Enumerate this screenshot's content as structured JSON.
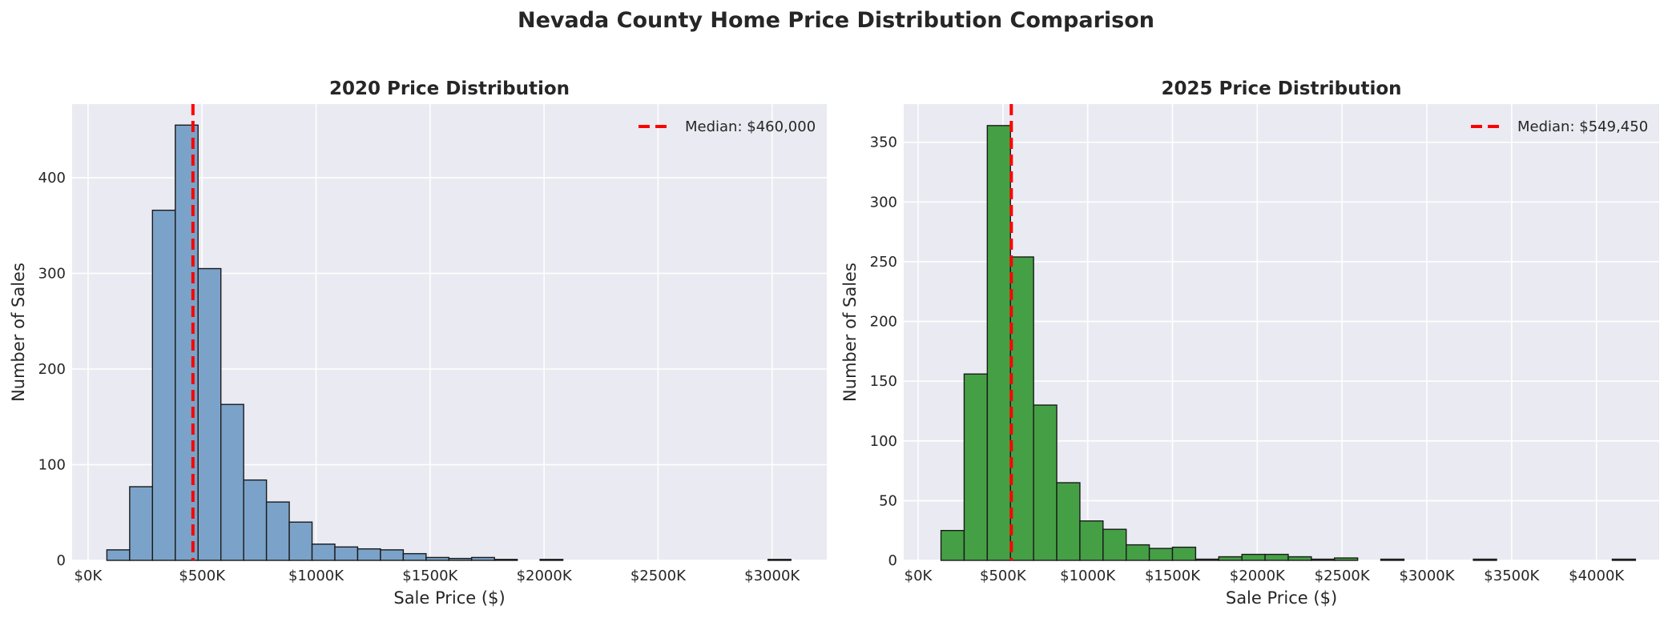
{
  "figure": {
    "title": "Nevada County Home Price Distribution Comparison"
  },
  "colors": {
    "background": "#EAEAF2",
    "grid": "#FFFFFF",
    "median_line": "#FF0000",
    "bar_edge": "#1a1a1a"
  },
  "chart_data": [
    {
      "type": "bar",
      "subtype": "histogram",
      "title": "2020 Price Distribution",
      "xlabel": "Sale Price ($)",
      "ylabel": "Number of Sales",
      "xlim": [
        -70000,
        3240000
      ],
      "ylim": [
        0,
        477
      ],
      "xticks": [
        0,
        500000,
        1000000,
        1500000,
        2000000,
        2500000,
        3000000
      ],
      "xtick_labels": [
        "$0K",
        "$500K",
        "$1000K",
        "$1500K",
        "$2000K",
        "$2500K",
        "$3000K"
      ],
      "yticks": [
        0,
        100,
        200,
        300,
        400
      ],
      "bar_color": "#7BA3C9",
      "bin_edges": [
        82500,
        182500,
        282500,
        382500,
        482500,
        582500,
        682500,
        782500,
        882500,
        982500,
        1082500,
        1182500,
        1282500,
        1382500,
        1482500,
        1582500,
        1682500,
        1782500,
        1882500,
        1982500,
        2082500,
        2182500,
        2282500,
        2382500,
        2482500,
        2582500,
        2682500,
        2782500,
        2882500,
        2982500,
        3082500
      ],
      "values": [
        11,
        77,
        366,
        455,
        305,
        163,
        84,
        61,
        40,
        17,
        14,
        12,
        11,
        7,
        3,
        2,
        3,
        1,
        0,
        1,
        0,
        0,
        0,
        0,
        0,
        0,
        0,
        0,
        0,
        1
      ],
      "median": {
        "value": 460000,
        "label": "Median: $460,000"
      },
      "legend": "top-right",
      "grid": true
    },
    {
      "type": "bar",
      "subtype": "histogram",
      "title": "2025 Price Distribution",
      "xlabel": "Sale Price ($)",
      "ylabel": "Number of Sales",
      "xlim": [
        -85000,
        4370000
      ],
      "ylim": [
        0,
        382
      ],
      "xticks": [
        0,
        500000,
        1000000,
        1500000,
        2000000,
        2500000,
        3000000,
        3500000,
        4000000
      ],
      "xtick_labels": [
        "$0K",
        "$500K",
        "$1000K",
        "$1500K",
        "$2000K",
        "$2500K",
        "$3000K",
        "$3500K",
        "$4000K"
      ],
      "yticks": [
        0,
        50,
        100,
        150,
        200,
        250,
        300,
        350
      ],
      "bar_color": "#45A045",
      "bin_edges": [
        135000,
        271500,
        408000,
        544500,
        681000,
        817500,
        954000,
        1090500,
        1227000,
        1363500,
        1500000,
        1636500,
        1773000,
        1909500,
        2046000,
        2182500,
        2319000,
        2455500,
        2592000,
        2728500,
        2865000,
        3001500,
        3138000,
        3274500,
        3411000,
        3547500,
        3684000,
        3820500,
        3957000,
        4093500,
        4230000
      ],
      "values": [
        25,
        156,
        364,
        254,
        130,
        65,
        33,
        26,
        13,
        10,
        11,
        1,
        3,
        5,
        5,
        3,
        1,
        2,
        0,
        1,
        0,
        0,
        0,
        1,
        0,
        0,
        0,
        0,
        0,
        1
      ],
      "median": {
        "value": 549450,
        "label": "Median: $549,450"
      },
      "legend": "top-right",
      "grid": true
    }
  ]
}
